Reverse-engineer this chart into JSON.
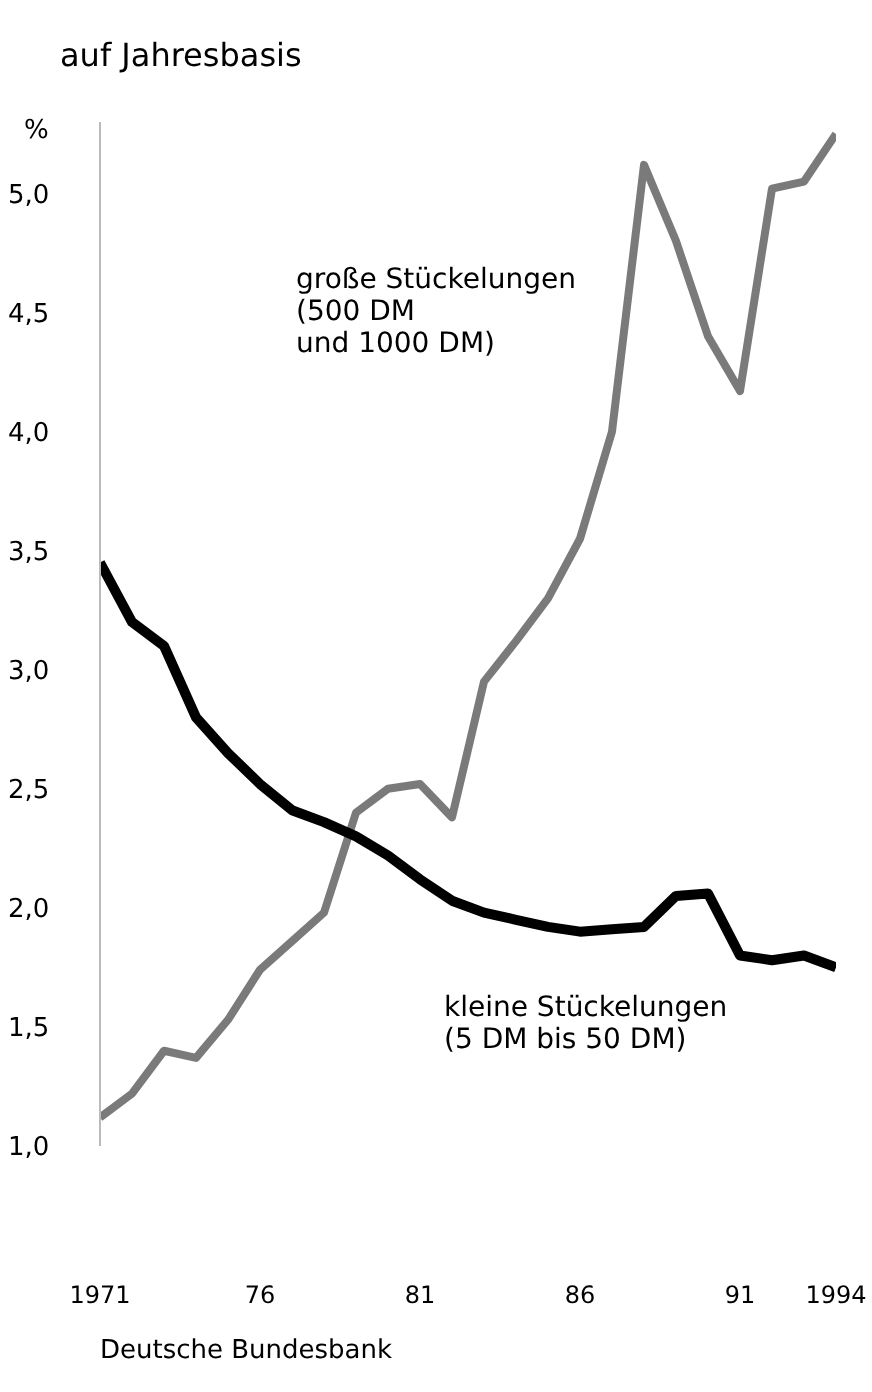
{
  "chart_data": {
    "type": "line",
    "title": "auf Jahresbasis",
    "ylabel": "%",
    "annotations": [
      "Deutsche Bundesbank"
    ],
    "x": [
      1971,
      1972,
      1973,
      1974,
      1975,
      1976,
      1977,
      1978,
      1979,
      1980,
      1981,
      1982,
      1983,
      1984,
      1985,
      1986,
      1987,
      1988,
      1989,
      1990,
      1991,
      1992,
      1993,
      1994
    ],
    "series": [
      {
        "name": "große Stückelungen\n(500 DM\nund 1000 DM)",
        "color": "#7a7a7a",
        "values": [
          1.12,
          1.22,
          1.4,
          1.37,
          1.53,
          1.74,
          1.86,
          1.98,
          2.4,
          2.5,
          2.52,
          2.38,
          2.95,
          3.12,
          3.3,
          3.55,
          4.0,
          5.12,
          4.8,
          4.4,
          4.17,
          5.02,
          5.05,
          5.25
        ]
      },
      {
        "name": "kleine Stückelungen\n(5 DM bis 50 DM)",
        "color": "#000000",
        "values": [
          3.45,
          3.2,
          3.1,
          2.8,
          2.65,
          2.52,
          2.41,
          2.36,
          2.3,
          2.22,
          2.12,
          2.03,
          1.98,
          1.95,
          1.92,
          1.9,
          1.91,
          1.92,
          2.05,
          2.06,
          1.8,
          1.78,
          1.8,
          1.75
        ]
      }
    ],
    "xlim": [
      1971,
      1994
    ],
    "xticks": [
      1971,
      {
        "value": 1976,
        "label": "76"
      },
      {
        "value": 1981,
        "label": "81"
      },
      {
        "value": 1986,
        "label": "86"
      },
      {
        "value": 1991,
        "label": "91"
      },
      1994
    ],
    "ylim": [
      1,
      5.3
    ],
    "yticks": [
      {
        "value": 1,
        "label": "1,0"
      },
      {
        "value": 1.5,
        "label": "1,5"
      },
      {
        "value": 2,
        "label": "2,0"
      },
      {
        "value": 2.5,
        "label": "2,5"
      },
      {
        "value": 3,
        "label": "3,0"
      },
      {
        "value": 3.5,
        "label": "3,5"
      },
      {
        "value": 4,
        "label": "4,0"
      },
      {
        "value": 4.5,
        "label": "4,5"
      },
      {
        "value": 5,
        "label": "5,0"
      }
    ],
    "grid": false,
    "legend": false,
    "marker": "none",
    "line_style": "solid"
  }
}
